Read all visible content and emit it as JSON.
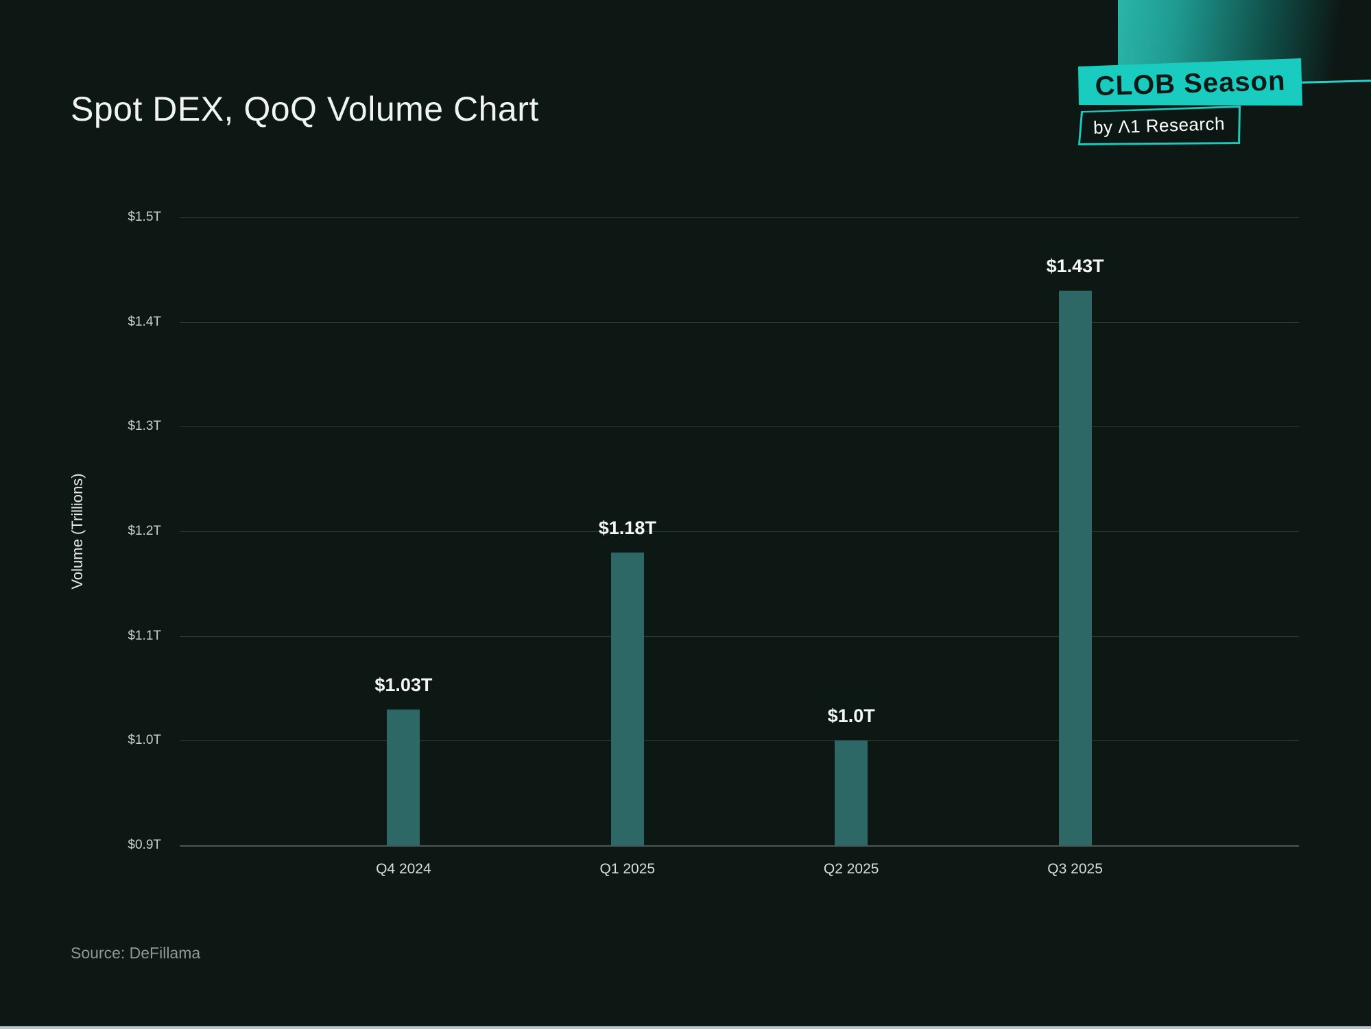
{
  "page": {
    "title": "Spot DEX, QoQ Volume Chart",
    "source": "Source: DeFillama"
  },
  "logo": {
    "badge": "CLOB Season",
    "byline": "by Λ1 Research",
    "accent_color": "#19ccbf"
  },
  "chart_data": {
    "type": "bar",
    "title": "Spot DEX, QoQ Volume Chart",
    "categories": [
      "Q4 2024",
      "Q1 2025",
      "Q2 2025",
      "Q3 2025"
    ],
    "values": [
      1.03,
      1.18,
      1.0,
      1.43
    ],
    "value_labels": [
      "$1.03T",
      "$1.18T",
      "$1.0T",
      "$1.43T"
    ],
    "xlabel": "",
    "ylabel": "Volume (Trillions)",
    "ylim": [
      0.9,
      1.5
    ],
    "yticks": [
      0.9,
      1.0,
      1.1,
      1.2,
      1.3,
      1.4,
      1.5
    ],
    "ytick_labels": [
      "$0.9T",
      "$1.0T",
      "$1.1T",
      "$1.2T",
      "$1.3T",
      "$1.4T",
      "$1.5T"
    ],
    "grid": true,
    "legend": false,
    "bar_color": "#2d6866",
    "background": "#0d1815",
    "source": "DeFillama"
  }
}
